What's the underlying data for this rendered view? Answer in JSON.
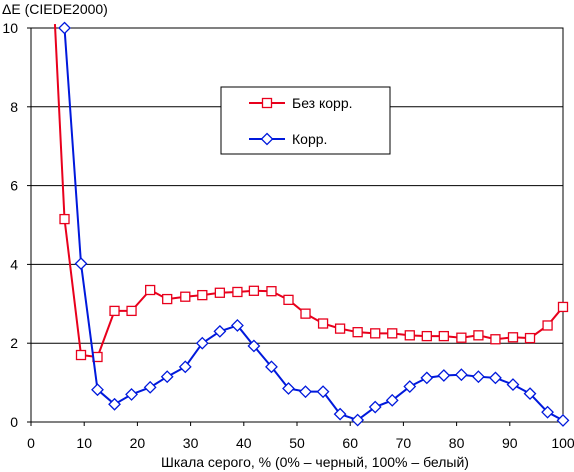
{
  "chart_data": {
    "type": "line",
    "title": "",
    "ylabel": "ΔE (CIEDE2000)",
    "xlabel": "Шкала серого, % (0% – черный, 100% – белый)",
    "xlim": [
      0,
      100
    ],
    "ylim": [
      0,
      10
    ],
    "xticks": [
      0,
      10,
      20,
      30,
      40,
      50,
      60,
      70,
      80,
      90,
      100
    ],
    "xtick_labels": [
      "0",
      "10",
      "20",
      "30",
      "40",
      "50",
      "60",
      "70",
      "80",
      "90",
      "100"
    ],
    "yticks": [
      0,
      2,
      4,
      6,
      8,
      10
    ],
    "ytick_labels": [
      "0",
      "2",
      "4",
      "6",
      "8",
      "10"
    ],
    "grid": "horizontal",
    "legend_position": "top-center",
    "series": [
      {
        "name": "Без корр.",
        "color": "#e8001c",
        "marker": "square",
        "line_start": {
          "x": 4.5,
          "y": 10.1
        },
        "x": [
          6.3,
          9.4,
          12.5,
          15.7,
          18.9,
          22.4,
          25.6,
          29,
          32.2,
          35.5,
          38.8,
          41.9,
          45.2,
          48.4,
          51.6,
          54.9,
          58.1,
          61.4,
          64.7,
          67.9,
          71.2,
          74.4,
          77.6,
          80.9,
          84.1,
          87.3,
          90.6,
          93.8,
          97.1,
          100
        ],
        "y": [
          5.15,
          1.7,
          1.65,
          2.82,
          2.82,
          3.35,
          3.12,
          3.18,
          3.22,
          3.28,
          3.3,
          3.33,
          3.32,
          3.1,
          2.75,
          2.5,
          2.37,
          2.28,
          2.25,
          2.25,
          2.2,
          2.18,
          2.18,
          2.14,
          2.2,
          2.1,
          2.15,
          2.13,
          2.45,
          2.92
        ]
      },
      {
        "name": "Корр.",
        "color": "#0019dc",
        "marker": "diamond",
        "x": [
          6.3,
          9.4,
          12.5,
          15.7,
          18.9,
          22.4,
          25.6,
          29,
          32.2,
          35.5,
          38.8,
          41.9,
          45.2,
          48.4,
          51.6,
          54.9,
          58.1,
          61.4,
          64.7,
          67.9,
          71.2,
          74.4,
          77.6,
          80.9,
          84.1,
          87.3,
          90.6,
          93.8,
          97.1,
          100
        ],
        "y": [
          10.0,
          4.02,
          0.82,
          0.45,
          0.7,
          0.88,
          1.15,
          1.4,
          2.0,
          2.3,
          2.45,
          1.93,
          1.4,
          0.85,
          0.77,
          0.77,
          0.2,
          0.05,
          0.38,
          0.55,
          0.9,
          1.12,
          1.18,
          1.2,
          1.15,
          1.12,
          0.95,
          0.72,
          0.25,
          0.04
        ]
      }
    ]
  }
}
